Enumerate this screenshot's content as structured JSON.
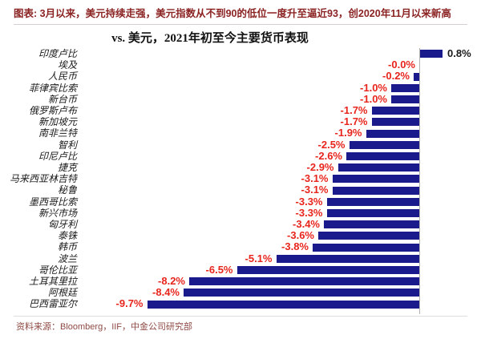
{
  "header": {
    "text": "图表: 3月以来，美元持续走强，美元指数从不到90的低位一度升至逼近93，创2020年11月以来新高"
  },
  "chart_data": {
    "type": "bar",
    "orientation": "horizontal",
    "title": "vs. 美元，2021年初至今主要货币表现",
    "categories": [
      "印度卢比",
      "埃及",
      "人民币",
      "菲律宾比索",
      "新台币",
      "俄罗斯卢布",
      "新加坡元",
      "南非兰特",
      "智利",
      "印尼卢比",
      "捷克",
      "马来西亚林吉特",
      "秘鲁",
      "墨西哥比索",
      "新兴市场",
      "匈牙利",
      "泰铢",
      "韩币",
      "波兰",
      "哥伦比亚",
      "土耳其里拉",
      "阿根廷",
      "巴西雷亚尔"
    ],
    "values": [
      0.8,
      -0.0,
      -0.2,
      -1.0,
      -1.0,
      -1.7,
      -1.7,
      -1.9,
      -2.5,
      -2.6,
      -2.9,
      -3.1,
      -3.1,
      -3.3,
      -3.3,
      -3.4,
      -3.6,
      -3.8,
      -5.1,
      -6.5,
      -8.2,
      -8.4,
      -9.7
    ],
    "value_labels": [
      "0.8%",
      "-0.0%",
      "-0.2%",
      "-1.0%",
      "-1.0%",
      "-1.7%",
      "-1.7%",
      "-1.9%",
      "-2.5%",
      "-2.6%",
      "-2.9%",
      "-3.1%",
      "-3.1%",
      "-3.3%",
      "-3.3%",
      "-3.4%",
      "-3.6%",
      "-3.8%",
      "-5.1%",
      "-6.5%",
      "-8.2%",
      "-8.4%",
      "-9.7%"
    ],
    "unit": "%",
    "xlim": [
      -10,
      1
    ],
    "grid": false,
    "legend": false,
    "bar_color": "#1a1a8c",
    "positive_label_color": "#1a1a1a",
    "negative_label_color": "#e8251d"
  },
  "footer": {
    "text": "资料来源：Bloomberg，IIF，中金公司研究部"
  },
  "colors": {
    "header_text": "#8b2323",
    "footer_text": "#8e4a44",
    "axis_line": "#b3b3b3",
    "separator": "#dddddd"
  }
}
